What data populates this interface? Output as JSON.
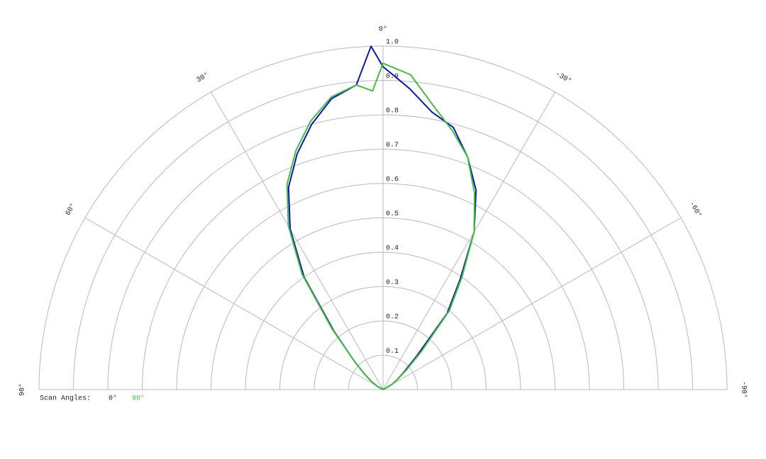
{
  "chart_data": {
    "type": "polar",
    "legend_title": "Scan Angles:",
    "theta": [
      -90,
      -60,
      -55,
      -50,
      -45,
      -40,
      -35,
      -30,
      -25,
      -20,
      -15,
      -10,
      -5,
      0,
      2,
      5,
      10,
      15,
      20,
      25,
      30,
      35,
      40,
      45,
      50,
      55,
      60,
      90
    ],
    "series": [
      {
        "name": "0°",
        "color": "#0b1aa6",
        "values": [
          0,
          0.03,
          0.05,
          0.08,
          0.14,
          0.29,
          0.39,
          0.53,
          0.64,
          0.72,
          0.79,
          0.82,
          0.88,
          0.94,
          1.0,
          0.89,
          0.86,
          0.8,
          0.73,
          0.65,
          0.54,
          0.4,
          0.22,
          0.12,
          0.07,
          0.04,
          0.02,
          0
        ]
      },
      {
        "name": "90°",
        "color": "#44bb44",
        "values": [
          0,
          0.03,
          0.05,
          0.09,
          0.16,
          0.3,
          0.4,
          0.53,
          0.63,
          0.72,
          0.78,
          0.84,
          0.92,
          0.95,
          0.87,
          0.89,
          0.865,
          0.81,
          0.74,
          0.66,
          0.55,
          0.41,
          0.23,
          0.12,
          0.07,
          0.04,
          0.02,
          0
        ]
      }
    ],
    "rlim": [
      0,
      1
    ],
    "rticks": [
      0.1,
      0.2,
      0.3,
      0.4,
      0.5,
      0.6,
      0.7,
      0.8,
      0.9,
      {
        "value": 1,
        "label": "1.0"
      }
    ],
    "thetaticks": [
      {
        "value": 0,
        "label": "0°"
      },
      {
        "value": 30,
        "label": "30°"
      },
      {
        "value": 60,
        "label": "60°"
      },
      {
        "value": 90,
        "label": "90°"
      },
      {
        "value": -30,
        "label": "-30°"
      },
      {
        "value": -60,
        "label": "-60°"
      },
      {
        "value": -90,
        "label": "-90°"
      }
    ],
    "grid": true
  }
}
